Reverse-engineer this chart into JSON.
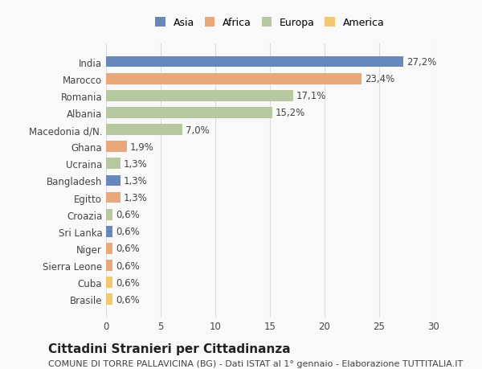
{
  "categories": [
    "Brasile",
    "Cuba",
    "Sierra Leone",
    "Niger",
    "Sri Lanka",
    "Croazia",
    "Egitto",
    "Bangladesh",
    "Ucraina",
    "Ghana",
    "Macedonia d/N.",
    "Albania",
    "Romania",
    "Marocco",
    "India"
  ],
  "values": [
    0.6,
    0.6,
    0.6,
    0.6,
    0.6,
    0.6,
    1.3,
    1.3,
    1.3,
    1.9,
    7.0,
    15.2,
    17.1,
    23.4,
    27.2
  ],
  "labels": [
    "0,6%",
    "0,6%",
    "0,6%",
    "0,6%",
    "0,6%",
    "0,6%",
    "1,3%",
    "1,3%",
    "1,3%",
    "1,9%",
    "7,0%",
    "15,2%",
    "17,1%",
    "23,4%",
    "27,2%"
  ],
  "continents": [
    "America",
    "America",
    "Africa",
    "Africa",
    "Asia",
    "Europa",
    "Africa",
    "Asia",
    "Europa",
    "Africa",
    "Europa",
    "Europa",
    "Europa",
    "Africa",
    "Asia"
  ],
  "continent_colors": {
    "Asia": "#6688bb",
    "Africa": "#e8a87c",
    "Europa": "#b5c8a0",
    "America": "#f0c96e"
  },
  "legend_order": [
    "Asia",
    "Africa",
    "Europa",
    "America"
  ],
  "title": "Cittadini Stranieri per Cittadinanza",
  "subtitle": "COMUNE DI TORRE PALLAVICINA (BG) - Dati ISTAT al 1° gennaio - Elaborazione TUTTITALIA.IT",
  "xlim": [
    0,
    30
  ],
  "xticks": [
    0,
    5,
    10,
    15,
    20,
    25,
    30
  ],
  "bg_color": "#f9f9f9",
  "grid_color": "#dddddd",
  "bar_height": 0.65,
  "label_fontsize": 8.5,
  "tick_fontsize": 8.5,
  "title_fontsize": 11,
  "subtitle_fontsize": 8
}
